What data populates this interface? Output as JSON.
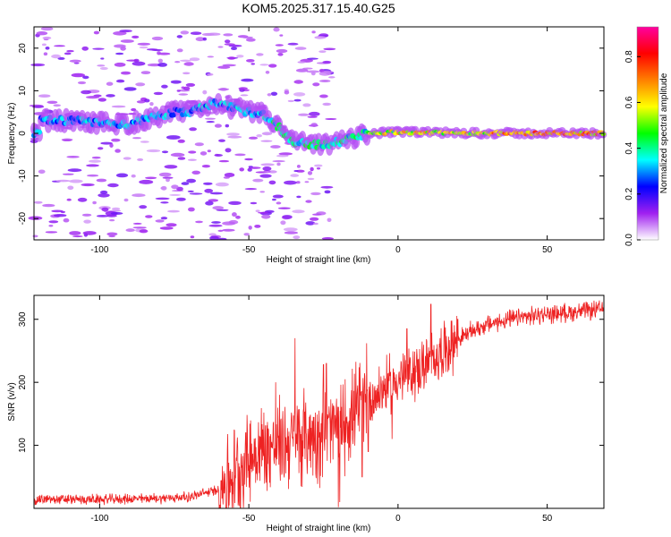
{
  "chart_data": [
    {
      "type": "heatmap",
      "title": "KOM5.2025.317.15.40.G25",
      "xlabel": "Height of straight line (km)",
      "ylabel": "Frequency (Hz)",
      "xlim": [
        -122,
        69
      ],
      "ylim": [
        -25,
        25
      ],
      "xticks": [
        -100,
        -50,
        0,
        50
      ],
      "yticks": [
        -20,
        -10,
        0,
        10,
        20
      ],
      "colorbar": {
        "label": "Normalized spectral amplitude",
        "range": [
          0.0,
          0.93
        ],
        "ticks": [
          0.0,
          0.2,
          0.4,
          0.6,
          0.8
        ],
        "colors": [
          "#ffffff",
          "#a020f0",
          "#0000ff",
          "#00ffff",
          "#00ff00",
          "#ffff00",
          "#ff8000",
          "#ff0000",
          "#ff00a0"
        ]
      },
      "ridge": [
        {
          "x": -120,
          "f": 3.0
        },
        {
          "x": -110,
          "f": 3.0
        },
        {
          "x": -100,
          "f": 2.5
        },
        {
          "x": -90,
          "f": 2.2
        },
        {
          "x": -80,
          "f": 4.0
        },
        {
          "x": -75,
          "f": 5.0
        },
        {
          "x": -70,
          "f": 5.0
        },
        {
          "x": -62,
          "f": 7.0
        },
        {
          "x": -55,
          "f": 6.0
        },
        {
          "x": -50,
          "f": 5.0
        },
        {
          "x": -45,
          "f": 4.5
        },
        {
          "x": -40,
          "f": 1.5
        },
        {
          "x": -35,
          "f": -2.0
        },
        {
          "x": -30,
          "f": -2.5
        },
        {
          "x": -25,
          "f": -2.8
        },
        {
          "x": -20,
          "f": -2.0
        },
        {
          "x": -15,
          "f": -1.0
        },
        {
          "x": -10,
          "f": 0.0
        },
        {
          "x": 0,
          "f": 0.3
        },
        {
          "x": 20,
          "f": 0.1
        },
        {
          "x": 40,
          "f": 0.0
        },
        {
          "x": 69,
          "f": 0.0
        }
      ]
    },
    {
      "type": "line",
      "xlabel": "Height of straight line (km)",
      "ylabel": "SNR (v/v)",
      "xlim": [
        -122,
        69
      ],
      "ylim": [
        0,
        338
      ],
      "xticks": [
        -100,
        -50,
        0,
        50
      ],
      "yticks": [
        100,
        200,
        300
      ],
      "color": "#ee2222",
      "series": [
        {
          "name": "SNR",
          "envelope": [
            {
              "x": -122,
              "y": 14
            },
            {
              "x": -100,
              "y": 14
            },
            {
              "x": -80,
              "y": 16
            },
            {
              "x": -70,
              "y": 18
            },
            {
              "x": -60,
              "y": 30
            },
            {
              "x": -55,
              "y": 55
            },
            {
              "x": -50,
              "y": 80
            },
            {
              "x": -45,
              "y": 95
            },
            {
              "x": -40,
              "y": 100
            },
            {
              "x": -35,
              "y": 110
            },
            {
              "x": -30,
              "y": 115
            },
            {
              "x": -25,
              "y": 120
            },
            {
              "x": -20,
              "y": 130
            },
            {
              "x": -15,
              "y": 150
            },
            {
              "x": -10,
              "y": 170
            },
            {
              "x": -5,
              "y": 190
            },
            {
              "x": 0,
              "y": 205
            },
            {
              "x": 5,
              "y": 215
            },
            {
              "x": 10,
              "y": 230
            },
            {
              "x": 15,
              "y": 250
            },
            {
              "x": 20,
              "y": 268
            },
            {
              "x": 25,
              "y": 282
            },
            {
              "x": 30,
              "y": 292
            },
            {
              "x": 40,
              "y": 302
            },
            {
              "x": 50,
              "y": 308
            },
            {
              "x": 60,
              "y": 312
            },
            {
              "x": 69,
              "y": 316
            }
          ],
          "peaks": [
            {
              "x": -34.5,
              "y": 270
            },
            {
              "x": -25,
              "y": 228
            },
            {
              "x": -24,
              "y": 230
            },
            {
              "x": -10.5,
              "y": 262
            },
            {
              "x": 11,
              "y": 324
            },
            {
              "x": 20,
              "y": 300
            },
            {
              "x": -41,
              "y": 200
            },
            {
              "x": -51,
              "y": 120
            },
            {
              "x": 3,
              "y": 285
            }
          ],
          "dips": [
            {
              "x": -20,
              "y": 2
            },
            {
              "x": -19.5,
              "y": 10
            },
            {
              "x": -12,
              "y": 50
            },
            {
              "x": -10,
              "y": 90
            },
            {
              "x": -2,
              "y": 110
            }
          ]
        }
      ]
    }
  ]
}
